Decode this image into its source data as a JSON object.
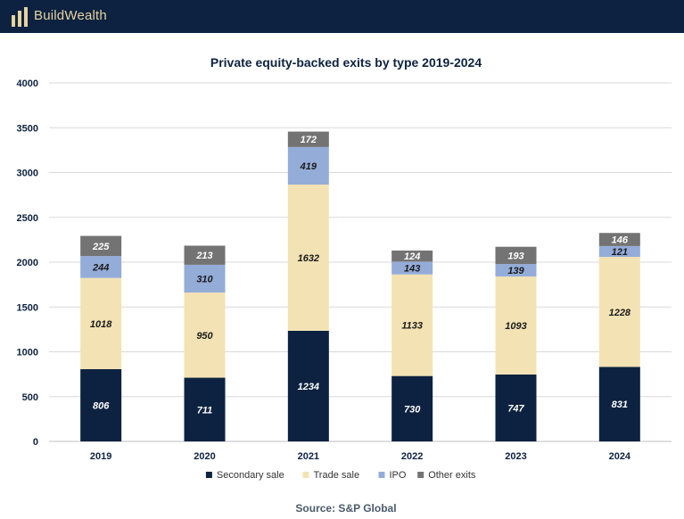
{
  "header": {
    "brand": "BuildWealth",
    "logo_icon": "building-bars-icon",
    "background": "#0d2240",
    "brand_color": "#e6d3a0"
  },
  "source_text": "Source: S&P Global",
  "chart_data": {
    "type": "bar",
    "stacked": true,
    "title": "Private equity-backed exits by type 2019-2024",
    "xlabel": "",
    "ylabel": "",
    "ylim": [
      0,
      4000
    ],
    "yticks": [
      0,
      500,
      1000,
      1500,
      2000,
      2500,
      3000,
      3500,
      4000
    ],
    "grid": true,
    "legend_position": "bottom",
    "categories": [
      "2019",
      "2020",
      "2021",
      "2022",
      "2023",
      "2024"
    ],
    "series": [
      {
        "name": "Secondary sale",
        "color": "#0d2240",
        "label_color": "#ffffff",
        "values": [
          806,
          711,
          1234,
          730,
          747,
          831
        ]
      },
      {
        "name": "Trade sale",
        "color": "#f3e3b4",
        "label_color": "#1a1a1a",
        "values": [
          1018,
          950,
          1632,
          1133,
          1093,
          1228
        ]
      },
      {
        "name": "IPO",
        "color": "#94acd8",
        "label_color": "#1a1a1a",
        "values": [
          244,
          310,
          419,
          143,
          139,
          121
        ]
      },
      {
        "name": "Other exits",
        "color": "#737373",
        "label_color": "#ffffff",
        "values": [
          225,
          213,
          172,
          124,
          193,
          146
        ]
      }
    ]
  }
}
